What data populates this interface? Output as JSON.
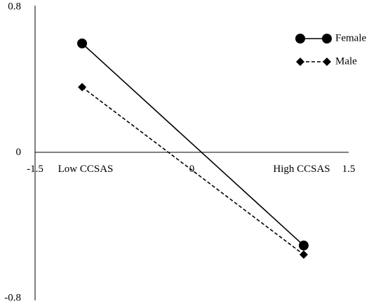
{
  "chart_data": {
    "type": "line",
    "xlim": [
      -1.5,
      1.5
    ],
    "xticks": [
      -1.5,
      0,
      1.5
    ],
    "ylim": [
      -0.8,
      0.8
    ],
    "yticks": [
      -0.8,
      0,
      0.8
    ],
    "annotations": [
      "Low CCSAS",
      "High CCSAS"
    ],
    "legend": "top-right",
    "series": [
      {
        "name": "Female",
        "color": "#000000",
        "line_style": "solid",
        "marker": "circle",
        "x": [
          -1.05,
          1.07
        ],
        "values": [
          0.6,
          -0.51
        ]
      },
      {
        "name": "Male",
        "color": "#000000",
        "line_style": "dashed",
        "marker": "diamond",
        "x": [
          -1.05,
          1.07
        ],
        "values": [
          0.36,
          -0.56
        ]
      }
    ]
  }
}
